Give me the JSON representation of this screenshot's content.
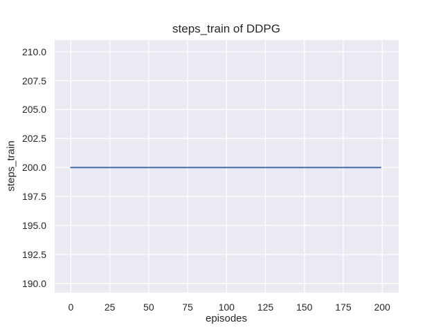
{
  "chart_data": {
    "type": "line",
    "title": "steps_train of DDPG",
    "xlabel": "episodes",
    "ylabel": "steps_train",
    "xlim": [
      -10.4,
      210.6
    ],
    "ylim": [
      189.2,
      211.0
    ],
    "grid": true,
    "legend": false,
    "x_tick_values": [
      0,
      25,
      50,
      75,
      100,
      125,
      150,
      175,
      200
    ],
    "x_tick_labels": [
      "0",
      "25",
      "50",
      "75",
      "100",
      "125",
      "150",
      "175",
      "200"
    ],
    "y_tick_values": [
      190.0,
      192.5,
      195.0,
      197.5,
      200.0,
      202.5,
      205.0,
      207.5,
      210.0
    ],
    "y_tick_labels": [
      "190.0",
      "192.5",
      "195.0",
      "197.5",
      "200.0",
      "202.5",
      "205.0",
      "207.5",
      "210.0"
    ],
    "series": [
      {
        "name": "steps_train",
        "color": "#4c72b0",
        "x": [
          0,
          199
        ],
        "y": [
          200,
          200
        ]
      }
    ],
    "colors": {
      "figure_bg": "#ffffff",
      "plot_bg": "#eaeaf2",
      "grid": "#ffffff",
      "text": "#262626"
    }
  }
}
